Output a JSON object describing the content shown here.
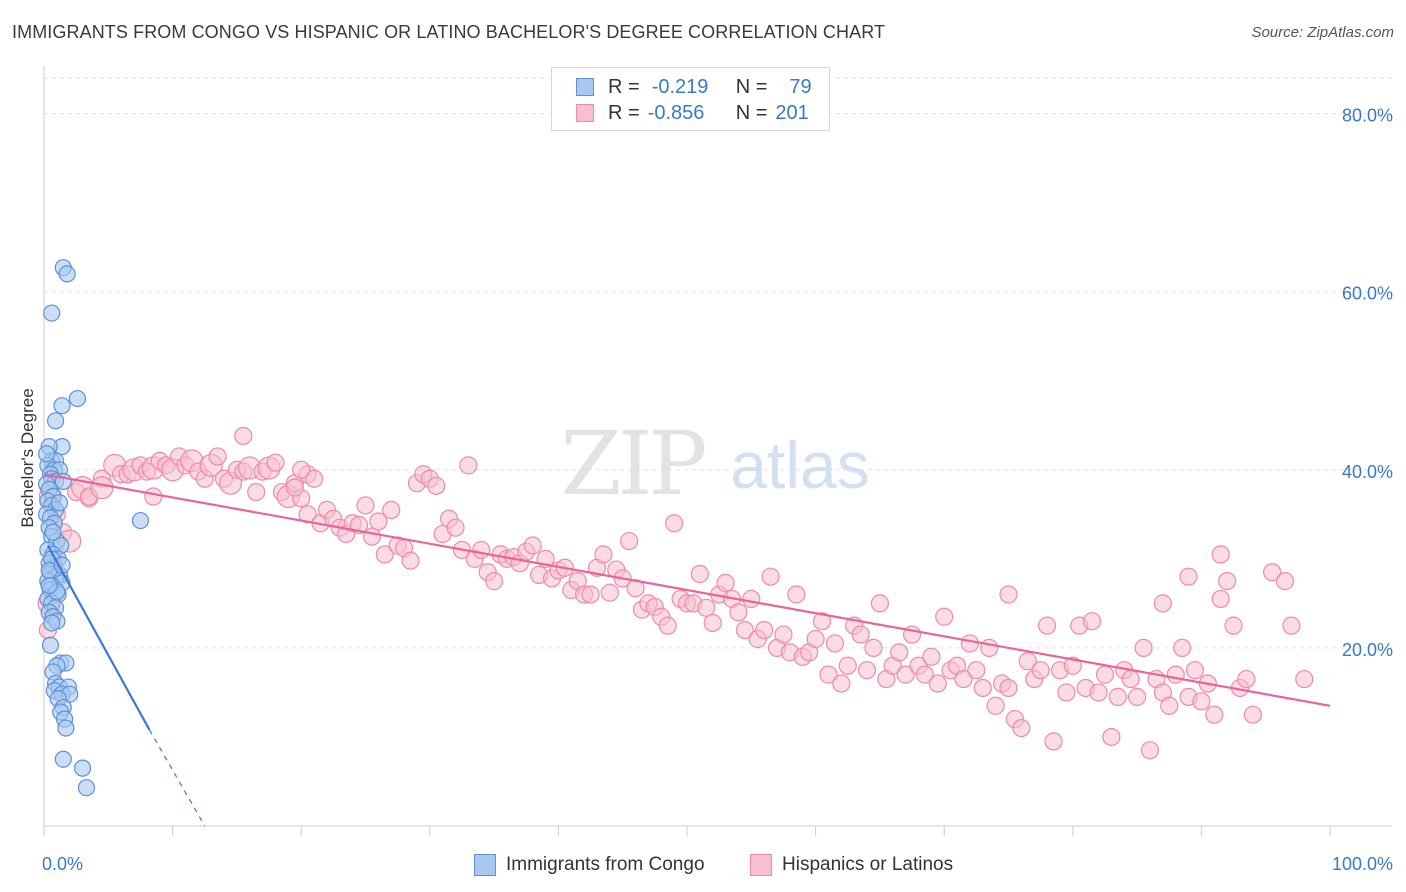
{
  "title": "IMMIGRANTS FROM CONGO VS HISPANIC OR LATINO BACHELOR'S DEGREE CORRELATION CHART",
  "source": "Source: ZipAtlas.com",
  "watermark": {
    "zip": "ZIP",
    "atlas": "atlas"
  },
  "legend": {
    "rows": [
      {
        "r_label": "R =",
        "r_value": "-0.219",
        "n_label": "N =",
        "n_value": "79"
      },
      {
        "r_label": "R =",
        "r_value": "-0.856",
        "n_label": "N =",
        "n_value": "201"
      }
    ]
  },
  "bottom_legend": {
    "series1": "Immigrants from Congo",
    "series2": "Hispanics or Latinos"
  },
  "colors": {
    "blue_fill": "#a9c8f0",
    "blue_stroke": "#5b92d8",
    "blue_line": "#3a78d8",
    "pink_fill": "#f7bfd0",
    "pink_stroke": "#ee8aaa",
    "pink_line": "#e8649a",
    "axis_label": "#3a78c8",
    "grid": "#e2e2e2"
  },
  "chart_data": {
    "type": "scatter",
    "title": "IMMIGRANTS FROM CONGO VS HISPANIC OR LATINO BACHELOR'S DEGREE CORRELATION CHART",
    "xlabel": "",
    "ylabel": "Bachelor's Degree",
    "xlim": [
      0,
      100
    ],
    "ylim": [
      0,
      84
    ],
    "x_tick_labels": [
      "0.0%",
      "100.0%"
    ],
    "y_ticks": [
      20,
      40,
      60,
      80
    ],
    "y_tick_labels": [
      "20.0%",
      "40.0%",
      "60.0%",
      "80.0%"
    ],
    "series": [
      {
        "name": "Immigrants from Congo",
        "R": -0.219,
        "N": 79,
        "trend": {
          "x0": 0.3,
          "y0": 31.5,
          "x1": 8.2,
          "y1": 10.8,
          "dash_x1": 12.5,
          "dash_y1": 0
        },
        "points": [
          [
            1.5,
            62.7
          ],
          [
            1.8,
            62.0
          ],
          [
            0.6,
            57.6
          ],
          [
            2.6,
            48.0
          ],
          [
            1.4,
            47.2
          ],
          [
            0.9,
            45.5
          ],
          [
            1.4,
            42.6
          ],
          [
            0.4,
            42.6
          ],
          [
            0.6,
            41.0
          ],
          [
            0.9,
            41.0
          ],
          [
            0.3,
            40.5
          ],
          [
            0.8,
            40.0
          ],
          [
            1.2,
            40.0
          ],
          [
            0.5,
            39.5
          ],
          [
            0.6,
            39.0
          ],
          [
            0.9,
            38.7
          ],
          [
            1.5,
            38.7
          ],
          [
            0.2,
            38.4
          ],
          [
            0.4,
            37.8
          ],
          [
            0.7,
            37.0
          ],
          [
            0.3,
            36.5
          ],
          [
            0.6,
            36.0
          ],
          [
            0.9,
            35.5
          ],
          [
            0.2,
            35.0
          ],
          [
            0.5,
            34.6
          ],
          [
            0.8,
            34.0
          ],
          [
            7.5,
            34.3
          ],
          [
            0.4,
            33.5
          ],
          [
            0.6,
            32.5
          ],
          [
            1.0,
            32.0
          ],
          [
            1.3,
            31.5
          ],
          [
            0.3,
            31.0
          ],
          [
            0.7,
            30.5
          ],
          [
            1.1,
            30.0
          ],
          [
            0.4,
            29.5
          ],
          [
            0.8,
            29.0
          ],
          [
            0.5,
            28.5
          ],
          [
            1.2,
            28.2
          ],
          [
            0.9,
            28.0
          ],
          [
            0.3,
            27.5
          ],
          [
            1.4,
            27.3
          ],
          [
            0.6,
            27.0
          ],
          [
            0.5,
            26.5
          ],
          [
            0.8,
            26.0
          ],
          [
            1.1,
            26.0
          ],
          [
            0.3,
            25.5
          ],
          [
            0.6,
            25.0
          ],
          [
            0.9,
            24.5
          ],
          [
            0.4,
            24.0
          ],
          [
            0.7,
            23.5
          ],
          [
            1.0,
            23.0
          ],
          [
            0.5,
            20.3
          ],
          [
            1.3,
            18.3
          ],
          [
            1.7,
            18.3
          ],
          [
            1.0,
            18.0
          ],
          [
            0.7,
            17.3
          ],
          [
            0.9,
            16.0
          ],
          [
            1.2,
            15.6
          ],
          [
            1.9,
            15.6
          ],
          [
            0.8,
            15.2
          ],
          [
            1.4,
            14.8
          ],
          [
            2.0,
            14.8
          ],
          [
            1.1,
            14.3
          ],
          [
            1.5,
            13.3
          ],
          [
            1.3,
            12.8
          ],
          [
            1.6,
            12.0
          ],
          [
            1.7,
            11.0
          ],
          [
            1.5,
            7.5
          ],
          [
            3.0,
            6.5
          ],
          [
            3.3,
            4.3
          ],
          [
            0.6,
            30.0
          ],
          [
            0.4,
            28.7
          ],
          [
            1.0,
            26.3
          ],
          [
            0.6,
            22.8
          ],
          [
            0.2,
            41.8
          ],
          [
            1.2,
            36.3
          ],
          [
            0.7,
            33.0
          ],
          [
            1.4,
            29.3
          ],
          [
            0.4,
            27.0
          ]
        ]
      },
      {
        "name": "Hispanics or Latinos",
        "R": -0.856,
        "N": 201,
        "trend": {
          "x0": 0,
          "y0": 39.5,
          "x1": 100,
          "y1": 13.5
        },
        "points": [
          [
            0.5,
            37.0
          ],
          [
            1.0,
            35.0
          ],
          [
            1.5,
            33.0
          ],
          [
            2.0,
            32.0
          ],
          [
            0.8,
            30.0
          ],
          [
            1.2,
            28.0
          ],
          [
            0.4,
            25.0
          ],
          [
            0.3,
            22.0
          ],
          [
            2.5,
            37.5
          ],
          [
            3.0,
            38.0
          ],
          [
            3.5,
            36.8
          ],
          [
            4.5,
            39.0
          ],
          [
            5.5,
            40.5
          ],
          [
            6.0,
            39.5
          ],
          [
            6.5,
            39.5
          ],
          [
            7.0,
            40.0
          ],
          [
            7.5,
            40.5
          ],
          [
            8.0,
            39.8
          ],
          [
            8.5,
            40.2
          ],
          [
            9.0,
            41.0
          ],
          [
            9.5,
            40.5
          ],
          [
            10.0,
            40.0
          ],
          [
            10.5,
            41.5
          ],
          [
            11.0,
            40.5
          ],
          [
            11.5,
            41.0
          ],
          [
            12.0,
            39.8
          ],
          [
            12.5,
            39.0
          ],
          [
            13.0,
            40.5
          ],
          [
            13.5,
            41.5
          ],
          [
            14.0,
            39.0
          ],
          [
            14.5,
            38.5
          ],
          [
            15.0,
            40.0
          ],
          [
            15.5,
            39.8
          ],
          [
            16.0,
            40.2
          ],
          [
            16.5,
            37.5
          ],
          [
            17.0,
            39.8
          ],
          [
            17.5,
            40.2
          ],
          [
            18.0,
            40.8
          ],
          [
            18.5,
            37.5
          ],
          [
            19.0,
            37.0
          ],
          [
            19.5,
            38.5
          ],
          [
            20.0,
            36.8
          ],
          [
            20.5,
            39.5
          ],
          [
            21.0,
            39.0
          ],
          [
            3.5,
            37.0
          ],
          [
            4.5,
            38.0
          ],
          [
            8.5,
            37.0
          ],
          [
            15.5,
            43.8
          ],
          [
            20.0,
            40.0
          ],
          [
            19.5,
            38.0
          ],
          [
            20.5,
            35.0
          ],
          [
            21.5,
            34.0
          ],
          [
            22.0,
            35.5
          ],
          [
            22.5,
            34.5
          ],
          [
            23.0,
            33.5
          ],
          [
            23.5,
            32.8
          ],
          [
            24.0,
            34.0
          ],
          [
            24.5,
            33.8
          ],
          [
            25.0,
            36.0
          ],
          [
            25.5,
            32.5
          ],
          [
            26.0,
            34.2
          ],
          [
            26.5,
            30.5
          ],
          [
            27.0,
            35.5
          ],
          [
            27.5,
            31.5
          ],
          [
            28.0,
            31.2
          ],
          [
            28.5,
            29.8
          ],
          [
            29.0,
            38.5
          ],
          [
            29.5,
            39.5
          ],
          [
            30.0,
            39.0
          ],
          [
            30.5,
            38.2
          ],
          [
            31.0,
            32.8
          ],
          [
            31.5,
            34.5
          ],
          [
            32.0,
            33.5
          ],
          [
            32.5,
            31.0
          ],
          [
            33.0,
            40.5
          ],
          [
            33.5,
            30.0
          ],
          [
            34.0,
            31.0
          ],
          [
            34.5,
            28.5
          ],
          [
            35.0,
            27.5
          ],
          [
            35.5,
            30.5
          ],
          [
            36.0,
            30.0
          ],
          [
            36.5,
            30.2
          ],
          [
            37.0,
            29.5
          ],
          [
            37.5,
            30.8
          ],
          [
            38.0,
            31.5
          ],
          [
            38.5,
            28.2
          ],
          [
            39.0,
            30.0
          ],
          [
            39.5,
            27.8
          ],
          [
            40.0,
            28.7
          ],
          [
            40.5,
            29.0
          ],
          [
            41.0,
            26.5
          ],
          [
            41.5,
            27.5
          ],
          [
            42.0,
            26.0
          ],
          [
            42.5,
            26.0
          ],
          [
            43.0,
            29.0
          ],
          [
            43.5,
            30.5
          ],
          [
            44.0,
            26.2
          ],
          [
            44.5,
            28.8
          ],
          [
            45.0,
            27.8
          ],
          [
            45.5,
            32.0
          ],
          [
            46.0,
            26.7
          ],
          [
            46.5,
            24.3
          ],
          [
            47.0,
            25.0
          ],
          [
            47.5,
            24.6
          ],
          [
            48.0,
            23.5
          ],
          [
            48.5,
            22.5
          ],
          [
            49.0,
            34.0
          ],
          [
            49.5,
            25.5
          ],
          [
            50.0,
            25.0
          ],
          [
            50.5,
            25.0
          ],
          [
            51.0,
            28.3
          ],
          [
            51.5,
            24.5
          ],
          [
            52.0,
            22.8
          ],
          [
            52.5,
            26.0
          ],
          [
            53.0,
            27.3
          ],
          [
            53.5,
            25.5
          ],
          [
            54.0,
            24.0
          ],
          [
            54.5,
            22.0
          ],
          [
            55.0,
            25.5
          ],
          [
            55.5,
            21.0
          ],
          [
            56.0,
            22.0
          ],
          [
            56.5,
            28.0
          ],
          [
            57.0,
            20.0
          ],
          [
            57.5,
            21.5
          ],
          [
            58.0,
            19.5
          ],
          [
            58.5,
            26.0
          ],
          [
            59.0,
            19.0
          ],
          [
            59.5,
            19.5
          ],
          [
            60.0,
            21.0
          ],
          [
            60.5,
            23.0
          ],
          [
            61.0,
            17.0
          ],
          [
            61.5,
            20.5
          ],
          [
            62.0,
            16.0
          ],
          [
            62.5,
            18.0
          ],
          [
            63.0,
            22.5
          ],
          [
            63.5,
            21.5
          ],
          [
            64.0,
            17.5
          ],
          [
            64.5,
            20.0
          ],
          [
            65.0,
            25.0
          ],
          [
            65.5,
            16.5
          ],
          [
            66.0,
            18.0
          ],
          [
            66.5,
            19.5
          ],
          [
            67.0,
            17.0
          ],
          [
            67.5,
            21.5
          ],
          [
            68.0,
            18.0
          ],
          [
            68.5,
            17.0
          ],
          [
            69.0,
            19.0
          ],
          [
            69.5,
            16.0
          ],
          [
            70.0,
            23.5
          ],
          [
            70.5,
            17.5
          ],
          [
            71.0,
            18.0
          ],
          [
            71.5,
            16.5
          ],
          [
            72.0,
            20.5
          ],
          [
            72.5,
            17.5
          ],
          [
            73.0,
            15.5
          ],
          [
            73.5,
            20.0
          ],
          [
            74.0,
            13.5
          ],
          [
            74.5,
            16.0
          ],
          [
            75.0,
            15.5
          ],
          [
            75.5,
            12.0
          ],
          [
            76.0,
            11.0
          ],
          [
            76.5,
            18.5
          ],
          [
            77.0,
            16.5
          ],
          [
            77.5,
            17.5
          ],
          [
            78.0,
            22.5
          ],
          [
            78.5,
            9.5
          ],
          [
            79.0,
            17.5
          ],
          [
            79.5,
            15.0
          ],
          [
            80.0,
            18.0
          ],
          [
            80.5,
            22.5
          ],
          [
            81.0,
            15.5
          ],
          [
            81.5,
            23.0
          ],
          [
            82.0,
            15.0
          ],
          [
            82.5,
            17.0
          ],
          [
            83.0,
            10.0
          ],
          [
            83.5,
            14.5
          ],
          [
            84.0,
            17.5
          ],
          [
            84.5,
            16.5
          ],
          [
            85.0,
            14.5
          ],
          [
            85.5,
            20.0
          ],
          [
            86.0,
            8.5
          ],
          [
            86.5,
            16.5
          ],
          [
            87.0,
            15.0
          ],
          [
            87.5,
            13.5
          ],
          [
            88.0,
            17.0
          ],
          [
            88.5,
            20.0
          ],
          [
            89.0,
            14.5
          ],
          [
            89.5,
            17.5
          ],
          [
            90.0,
            14.0
          ],
          [
            90.5,
            16.0
          ],
          [
            91.0,
            12.5
          ],
          [
            91.5,
            30.5
          ],
          [
            92.0,
            27.5
          ],
          [
            92.5,
            22.5
          ],
          [
            93.0,
            15.5
          ],
          [
            93.5,
            16.5
          ],
          [
            94.0,
            12.5
          ],
          [
            95.5,
            28.5
          ],
          [
            96.5,
            27.5
          ],
          [
            97.0,
            22.5
          ],
          [
            98.0,
            16.5
          ],
          [
            89.0,
            28.0
          ],
          [
            87.0,
            25.0
          ],
          [
            75.0,
            26.0
          ],
          [
            91.5,
            25.5
          ]
        ]
      }
    ]
  }
}
